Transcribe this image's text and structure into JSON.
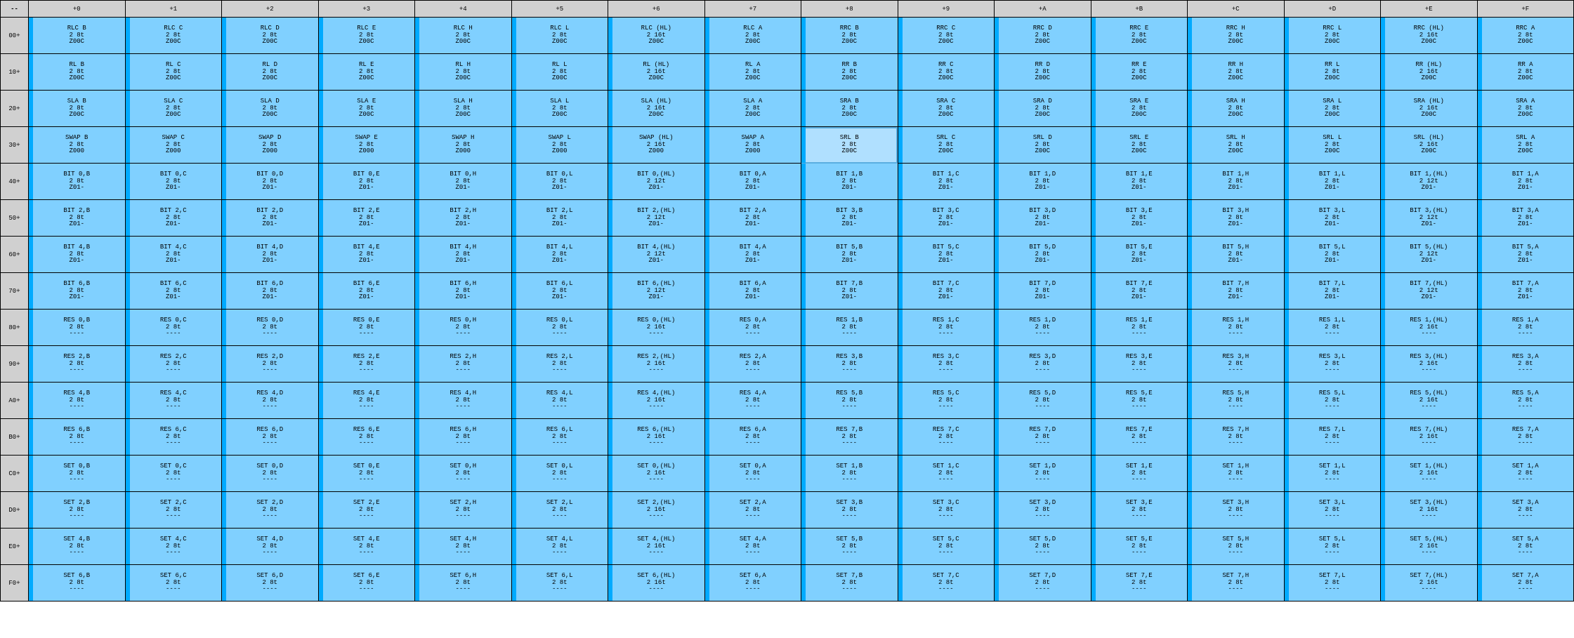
{
  "corner_label": "--",
  "col_headers": [
    "+0",
    "+1",
    "+2",
    "+3",
    "+4",
    "+5",
    "+6",
    "+7",
    "+8",
    "+9",
    "+A",
    "+B",
    "+C",
    "+D",
    "+E",
    "+F"
  ],
  "row_headers": [
    "00+",
    "10+",
    "20+",
    "30+",
    "40+",
    "50+",
    "60+",
    "70+",
    "80+",
    "90+",
    "A0+",
    "B0+",
    "C0+",
    "D0+",
    "E0+",
    "F0+"
  ],
  "registers": [
    "B",
    "C",
    "D",
    "E",
    "H",
    "L",
    "(HL)",
    "A"
  ],
  "timing_reg": "2 8t",
  "timing_hl_16": "2 16t",
  "timing_hl_12": "2 12t",
  "flags": {
    "rot": "Z00C",
    "swap": "Z000",
    "bit": "Z01-",
    "none": "----"
  },
  "highlight": {
    "row": 3,
    "col": 8
  },
  "rows": [
    {
      "left_mn": "RLC",
      "right_mn": "RRC",
      "flags": "rot",
      "hl_timing": "16"
    },
    {
      "left_mn": "RL",
      "right_mn": "RR",
      "flags": "rot",
      "hl_timing": "16"
    },
    {
      "left_mn": "SLA",
      "right_mn": "SRA",
      "flags": "rot",
      "hl_timing": "16"
    },
    {
      "left_mn": "SWAP",
      "left_flags": "swap",
      "right_mn": "SRL",
      "right_flags": "rot",
      "hl_timing": "16"
    },
    {
      "left_mn": "BIT 0,",
      "right_mn": "BIT 1,",
      "flags": "bit",
      "hl_timing": "12"
    },
    {
      "left_mn": "BIT 2,",
      "right_mn": "BIT 3,",
      "flags": "bit",
      "hl_timing": "12"
    },
    {
      "left_mn": "BIT 4,",
      "right_mn": "BIT 5,",
      "flags": "bit",
      "hl_timing": "12"
    },
    {
      "left_mn": "BIT 6,",
      "right_mn": "BIT 7,",
      "flags": "bit",
      "hl_timing": "12"
    },
    {
      "left_mn": "RES 0,",
      "right_mn": "RES 1,",
      "flags": "none",
      "hl_timing": "16"
    },
    {
      "left_mn": "RES 2,",
      "right_mn": "RES 3,",
      "flags": "none",
      "hl_timing": "16"
    },
    {
      "left_mn": "RES 4,",
      "right_mn": "RES 5,",
      "flags": "none",
      "hl_timing": "16"
    },
    {
      "left_mn": "RES 6,",
      "right_mn": "RES 7,",
      "flags": "none",
      "hl_timing": "16"
    },
    {
      "left_mn": "SET 0,",
      "right_mn": "SET 1,",
      "flags": "none",
      "hl_timing": "16"
    },
    {
      "left_mn": "SET 2,",
      "right_mn": "SET 3,",
      "flags": "none",
      "hl_timing": "16"
    },
    {
      "left_mn": "SET 4,",
      "right_mn": "SET 5,",
      "flags": "none",
      "hl_timing": "16"
    },
    {
      "left_mn": "SET 6,",
      "right_mn": "SET 7,",
      "flags": "none",
      "hl_timing": "16"
    }
  ],
  "colors": {
    "cell_bg": "#80d0ff",
    "bar": "#00aaff",
    "header_bg": "#d0d0d0",
    "highlight_bg": "#b0e0ff",
    "border": "#000000"
  }
}
